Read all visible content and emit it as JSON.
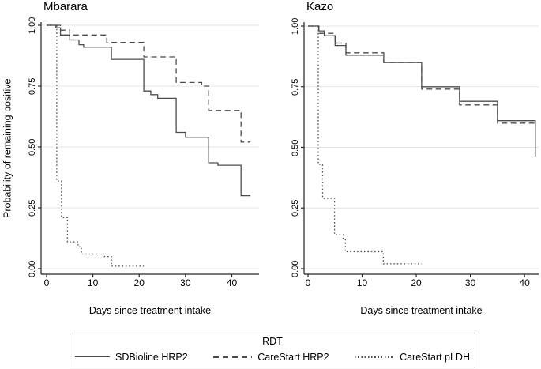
{
  "figure": {
    "background": "#ffffff"
  },
  "colors": {
    "line": "#4d4d4d",
    "grid": "#e4e4e4",
    "axis": "#262626",
    "legend_border": "#9a9a9a"
  },
  "legend": {
    "title": "RDT",
    "items": [
      {
        "label": "SDBioline HRP2",
        "style": "solid"
      },
      {
        "label": "CareStart HRP2",
        "style": "dashed"
      },
      {
        "label": "CareStart pLDH",
        "style": "dotted"
      }
    ]
  },
  "chart_data": [
    {
      "type": "line",
      "subtype": "step-survival",
      "title": "Mbarara",
      "xlabel": "Days since treatment intake",
      "ylabel": "Probability of remaining positive",
      "xlim": [
        0,
        45
      ],
      "ylim": [
        0,
        1
      ],
      "xticks": [
        0,
        10,
        20,
        30,
        40
      ],
      "ytick_labels": [
        "0.00",
        "0.25",
        "0.50",
        "0.75",
        "1.00"
      ],
      "ytick_values": [
        0,
        0.25,
        0.5,
        0.75,
        1
      ],
      "grid": "horizontal",
      "series": [
        {
          "name": "SDBioline HRP2",
          "style": "solid",
          "points": [
            [
              0,
              1.0
            ],
            [
              2,
              0.99
            ],
            [
              3,
              0.96
            ],
            [
              5,
              0.94
            ],
            [
              7,
              0.92
            ],
            [
              8,
              0.91
            ],
            [
              14,
              0.86
            ],
            [
              21,
              0.73
            ],
            [
              22.5,
              0.715
            ],
            [
              24,
              0.7
            ],
            [
              28,
              0.56
            ],
            [
              30,
              0.54
            ],
            [
              35,
              0.435
            ],
            [
              37,
              0.425
            ],
            [
              42,
              0.3
            ],
            [
              44,
              0.3
            ]
          ]
        },
        {
          "name": "CareStart HRP2",
          "style": "dashed",
          "points": [
            [
              0,
              1.0
            ],
            [
              3,
              0.98
            ],
            [
              5,
              0.96
            ],
            [
              13,
              0.93
            ],
            [
              21,
              0.87
            ],
            [
              28,
              0.765
            ],
            [
              33.5,
              0.75
            ],
            [
              35,
              0.65
            ],
            [
              42,
              0.52
            ],
            [
              44,
              0.52
            ]
          ]
        },
        {
          "name": "CareStart pLDH",
          "style": "dotted",
          "points": [
            [
              0,
              1.0
            ],
            [
              2.2,
              0.36
            ],
            [
              3.2,
              0.21
            ],
            [
              4.5,
              0.11
            ],
            [
              6.8,
              0.09
            ],
            [
              7.5,
              0.06
            ],
            [
              12.5,
              0.05
            ],
            [
              14,
              0.01
            ],
            [
              21,
              0.01
            ]
          ]
        }
      ]
    },
    {
      "type": "line",
      "subtype": "step-survival",
      "title": "Kazo",
      "xlabel": "Days since treatment intake",
      "ylabel": "Probability of remaining positive",
      "xlim": [
        0,
        43
      ],
      "ylim": [
        0,
        1
      ],
      "xticks": [
        0,
        10,
        20,
        30,
        40
      ],
      "ytick_labels": [
        "0.00",
        "0.25",
        "0.50",
        "0.75",
        "1.00"
      ],
      "ytick_values": [
        0,
        0.25,
        0.5,
        0.75,
        1
      ],
      "grid": "horizontal",
      "series": [
        {
          "name": "SDBioline HRP2",
          "style": "solid",
          "points": [
            [
              0,
              1.0
            ],
            [
              2,
              0.98
            ],
            [
              3,
              0.96
            ],
            [
              5,
              0.92
            ],
            [
              7,
              0.88
            ],
            [
              14,
              0.85
            ],
            [
              21,
              0.75
            ],
            [
              28,
              0.69
            ],
            [
              35,
              0.61
            ],
            [
              42,
              0.46
            ]
          ]
        },
        {
          "name": "CareStart HRP2",
          "style": "dashed",
          "points": [
            [
              0,
              1.0
            ],
            [
              2,
              0.97
            ],
            [
              5,
              0.93
            ],
            [
              7,
              0.89
            ],
            [
              14,
              0.85
            ],
            [
              21,
              0.74
            ],
            [
              28,
              0.675
            ],
            [
              35,
              0.6
            ],
            [
              42,
              0.6
            ]
          ]
        },
        {
          "name": "CareStart pLDH",
          "style": "dotted",
          "points": [
            [
              0,
              1.0
            ],
            [
              1.9,
              0.43
            ],
            [
              2.7,
              0.29
            ],
            [
              4.9,
              0.14
            ],
            [
              6.5,
              0.12
            ],
            [
              6.9,
              0.07
            ],
            [
              13.9,
              0.02
            ],
            [
              21,
              0.02
            ]
          ]
        }
      ]
    }
  ]
}
